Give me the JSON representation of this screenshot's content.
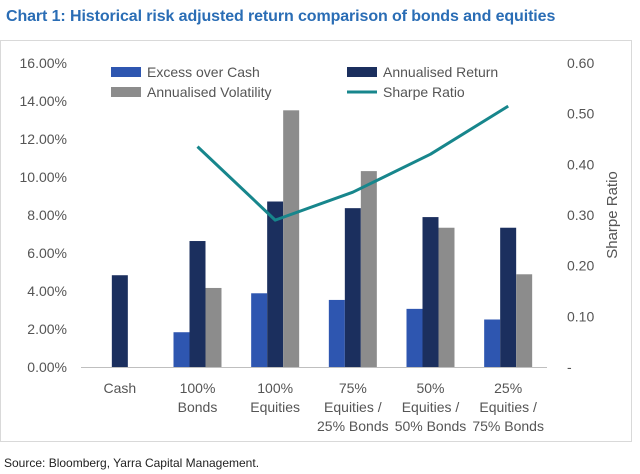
{
  "page_title": "Chart 1: Historical risk adjusted return comparison of bonds and equities",
  "source_note": "Source: Bloomberg, Yarra Capital Management.",
  "chart_data": {
    "type": "bar",
    "title": "Chart 1: Historical risk adjusted return comparison of bonds and equities",
    "categories": [
      [
        "Cash"
      ],
      [
        "100%",
        "Bonds"
      ],
      [
        "100%",
        "Equities"
      ],
      [
        "75%",
        "Equities /",
        "25% Bonds"
      ],
      [
        "50%",
        "Equities /",
        "50% Bonds"
      ],
      [
        "25%",
        "Equities /",
        "75% Bonds"
      ]
    ],
    "series": [
      {
        "name": "Excess over Cash",
        "kind": "bar",
        "axis": "left",
        "color": "#2e56b0",
        "values": [
          null,
          0.0183,
          0.0388,
          0.0353,
          0.0306,
          0.025
        ]
      },
      {
        "name": "Annualised Return",
        "kind": "bar",
        "axis": "left",
        "color": "#1b2f5e",
        "values": [
          0.0483,
          0.0663,
          0.0871,
          0.0836,
          0.0789,
          0.0733
        ]
      },
      {
        "name": "Annualised Volatility",
        "kind": "bar",
        "axis": "left",
        "color": "#8c8c8c",
        "values": [
          null,
          0.0416,
          0.1351,
          0.1031,
          0.0733,
          0.0488
        ]
      },
      {
        "name": "Sharpe Ratio",
        "kind": "line",
        "axis": "right",
        "color": "#17868c",
        "values": [
          null,
          0.435,
          0.29,
          0.345,
          0.42,
          0.515
        ]
      }
    ],
    "y_left": {
      "ylim": [
        0,
        0.16
      ],
      "ticks": [
        0,
        0.02,
        0.04,
        0.06,
        0.08,
        0.1,
        0.12,
        0.14,
        0.16
      ],
      "tick_labels": [
        "0.00%",
        "2.00%",
        "4.00%",
        "6.00%",
        "8.00%",
        "10.00%",
        "12.00%",
        "14.00%",
        "16.00%"
      ]
    },
    "y_right": {
      "label": "Sharpe Ratio",
      "ylim": [
        0,
        0.6
      ],
      "ticks": [
        0,
        0.1,
        0.2,
        0.3,
        0.4,
        0.5,
        0.6
      ],
      "tick_labels": [
        "-",
        "0.10",
        "0.20",
        "0.30",
        "0.40",
        "0.50",
        "0.60"
      ]
    },
    "grid": false,
    "legend_position": "top"
  }
}
